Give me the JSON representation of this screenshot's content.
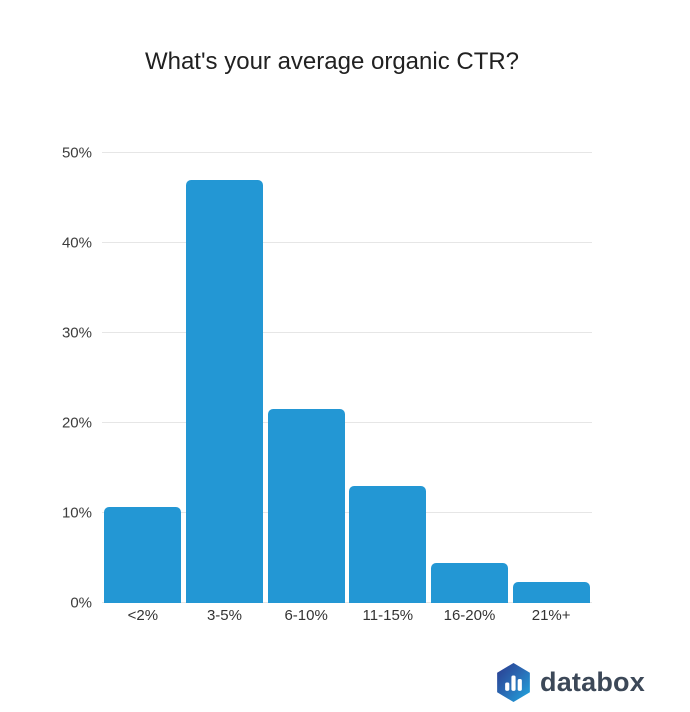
{
  "chart_data": {
    "type": "bar",
    "title": "What's your average organic CTR?",
    "categories": [
      "<2%",
      "3-5%",
      "6-10%",
      "11-15%",
      "16-20%",
      "21%+"
    ],
    "values": [
      10.7,
      47.0,
      21.6,
      13.0,
      4.5,
      2.3
    ],
    "xlabel": "",
    "ylabel": "",
    "ylim": [
      0,
      50
    ],
    "yticks": [
      {
        "label": "0%",
        "value": 0
      },
      {
        "label": "10%",
        "value": 10
      },
      {
        "label": "20%",
        "value": 20
      },
      {
        "label": "30%",
        "value": 30
      },
      {
        "label": "40%",
        "value": 40
      },
      {
        "label": "50%",
        "value": 50
      }
    ],
    "grid": true,
    "legend": false,
    "bar_color": "#2397d4",
    "gridline_color": "#e6e6e6",
    "title_color": "#212121",
    "tick_label_color": "#333333"
  },
  "footer": {
    "logo_text": "databox",
    "logo_icon": "databox-hexagon-bar-chart-icon",
    "logo_colors": {
      "gradient_start": "#2b3a8e",
      "gradient_end": "#1fa9e1",
      "bars": "#ffffff",
      "text": "#3c4858"
    }
  }
}
